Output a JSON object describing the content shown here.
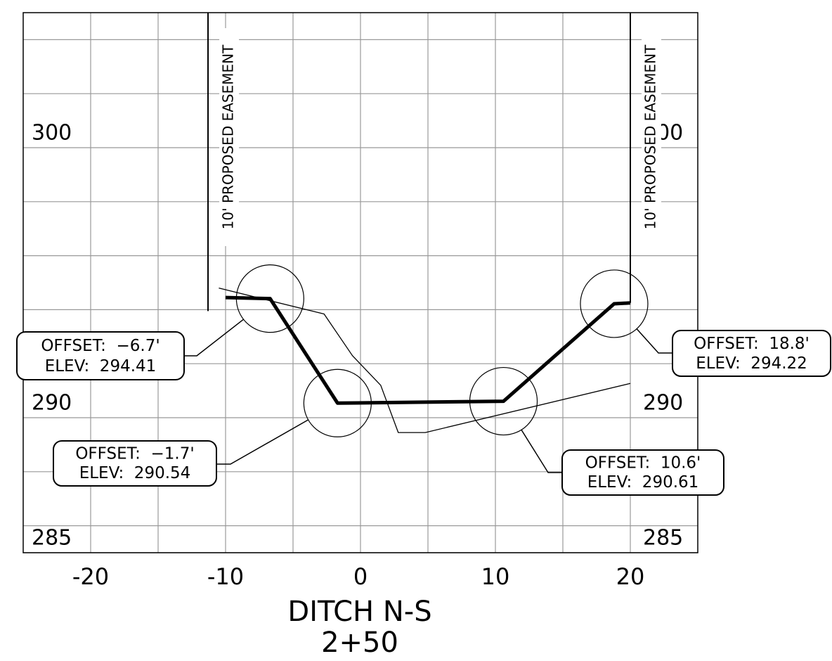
{
  "chart_data": {
    "type": "line",
    "title": "DITCH N-S",
    "subtitle": "2+50",
    "xlim": [
      -25,
      25
    ],
    "ylim": [
      285,
      305
    ],
    "xticks": [
      -20,
      -10,
      0,
      10,
      20
    ],
    "yticks": [
      285,
      290,
      300
    ],
    "xminor": [
      -15,
      -5,
      5,
      15
    ],
    "yminor": [
      286,
      288,
      292,
      294,
      296,
      298,
      302,
      304
    ],
    "grid": true,
    "series": [
      {
        "color": "#000000",
        "line_width": 5,
        "x": [
          -10,
          -6.7,
          -1.7,
          10.6,
          18.8,
          20
        ],
        "values": [
          294.45,
          294.41,
          290.54,
          290.61,
          294.22,
          294.25
        ]
      },
      {
        "color": "#000000",
        "line_width": 1.3,
        "x": [
          -10.5,
          -2.7,
          -0.6,
          1.5,
          2.8,
          4.8,
          20
        ],
        "values": [
          294.8,
          293.84,
          292.3,
          291.2,
          289.45,
          289.45,
          291.27
        ]
      }
    ],
    "easements": [
      {
        "x": -11.3,
        "y_bottom": 293.95,
        "label": "10' PROPOSED EASEMENT"
      },
      {
        "x": 20,
        "y_bottom": 294.25,
        "label": "10' PROPOSED EASEMENT"
      }
    ],
    "annotations": [
      {
        "x": -6.7,
        "y": 294.41,
        "lines": [
          "OFFSET:  −6.7'",
          "ELEV:  294.41"
        ]
      },
      {
        "x": -1.7,
        "y": 290.54,
        "lines": [
          "OFFSET:  −1.7'",
          "ELEV:  290.54"
        ]
      },
      {
        "x": 10.6,
        "y": 290.61,
        "lines": [
          "OFFSET:  10.6'",
          "ELEV:  290.61"
        ]
      },
      {
        "x": 18.8,
        "y": 294.22,
        "lines": [
          "OFFSET:  18.8'",
          "ELEV:  294.22"
        ]
      }
    ]
  }
}
